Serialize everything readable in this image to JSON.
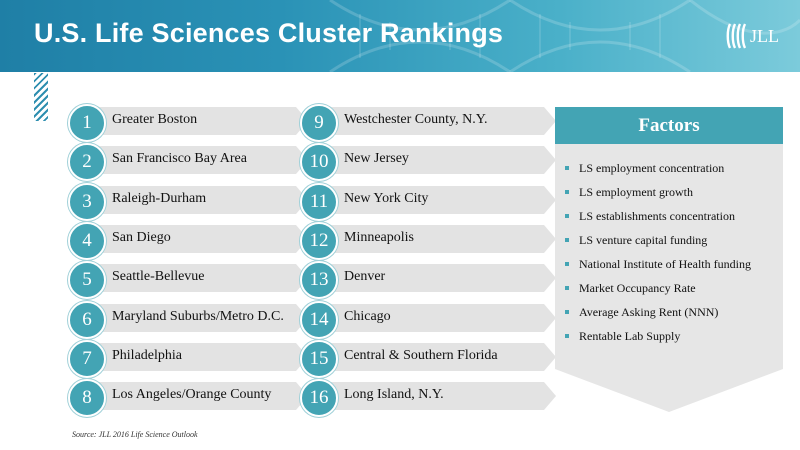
{
  "header": {
    "title": "U.S. Life Sciences Cluster Rankings",
    "logo_text": "JLL"
  },
  "rankings": [
    {
      "rank": "1",
      "name": "Greater Boston"
    },
    {
      "rank": "2",
      "name": "San Francisco Bay Area"
    },
    {
      "rank": "3",
      "name": "Raleigh-Durham"
    },
    {
      "rank": "4",
      "name": "San Diego"
    },
    {
      "rank": "5",
      "name": "Seattle-Bellevue"
    },
    {
      "rank": "6",
      "name": "Maryland Suburbs/Metro D.C."
    },
    {
      "rank": "7",
      "name": "Philadelphia"
    },
    {
      "rank": "8",
      "name": "Los Angeles/Orange County"
    },
    {
      "rank": "9",
      "name": "Westchester County, N.Y."
    },
    {
      "rank": "10",
      "name": "New Jersey"
    },
    {
      "rank": "11",
      "name": "New York City"
    },
    {
      "rank": "12",
      "name": "Minneapolis"
    },
    {
      "rank": "13",
      "name": "Denver"
    },
    {
      "rank": "14",
      "name": "Chicago"
    },
    {
      "rank": "15",
      "name": "Central & Southern Florida"
    },
    {
      "rank": "16",
      "name": "Long Island, N.Y."
    }
  ],
  "factors": {
    "heading": "Factors",
    "items": [
      "LS employment concentration",
      "LS employment growth",
      "LS establishments concentration",
      "LS venture capital funding",
      "National Institute of Health funding",
      "Market Occupancy Rate",
      "Average Asking Rent (NNN)",
      "Rentable Lab Supply"
    ]
  },
  "source": "Source: JLL 2016 Life Science Outlook",
  "colors": {
    "accent": "#43a4b4",
    "banner": "#2a92b6",
    "bar": "#e3e3e3",
    "panel": "#e6e6e6"
  }
}
